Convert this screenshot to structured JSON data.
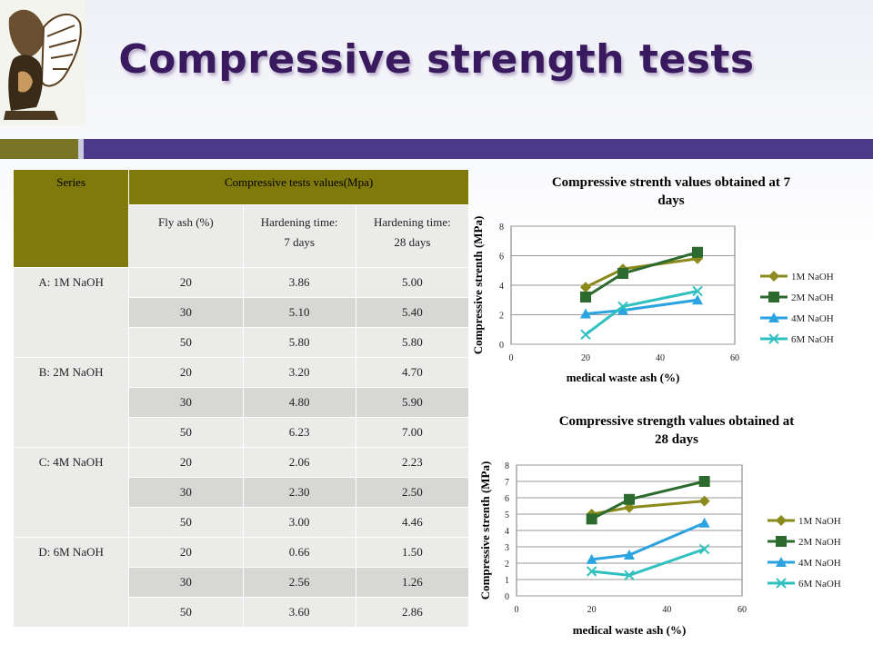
{
  "title": "Compressive strength tests",
  "table": {
    "header_series": "Series",
    "header_group": "Compressive tests values(Mpa)",
    "sub_headers": [
      "Fly ash (%)",
      "Hardening time: 7 days",
      "Hardening time: 28 days"
    ],
    "sub_header_lines": [
      [
        "Fly ash (%)"
      ],
      [
        "Hardening time:",
        "7 days"
      ],
      [
        "Hardening time:",
        "28 days"
      ]
    ],
    "groups": [
      {
        "series": "A: 1M NaOH",
        "rows": [
          [
            "20",
            "3.86",
            "5.00"
          ],
          [
            "30",
            "5.10",
            "5.40"
          ],
          [
            "50",
            "5.80",
            "5.80"
          ]
        ]
      },
      {
        "series": "B: 2M NaOH",
        "rows": [
          [
            "20",
            "3.20",
            "4.70"
          ],
          [
            "30",
            "4.80",
            "5.90"
          ],
          [
            "50",
            "6.23",
            "7.00"
          ]
        ]
      },
      {
        "series": "C: 4M NaOH",
        "rows": [
          [
            "20",
            "2.06",
            "2.23"
          ],
          [
            "30",
            "2.30",
            "2.50"
          ],
          [
            "50",
            "3.00",
            "4.46"
          ]
        ]
      },
      {
        "series": "D: 6M NaOH",
        "rows": [
          [
            "20",
            "0.66",
            "1.50"
          ],
          [
            "30",
            "2.56",
            "1.26"
          ],
          [
            "50",
            "3.60",
            "2.86"
          ]
        ]
      }
    ]
  },
  "chart_data": [
    {
      "type": "line",
      "title": "Compressive strenth values obtained at 7 days",
      "title_lines": [
        "Compressive strenth values obtained at 7",
        "days"
      ],
      "xlabel": "medical waste ash (%)",
      "ylabel": "Compressive strenth  (MPa)",
      "xlim": [
        0,
        60
      ],
      "ylim": [
        0,
        8
      ],
      "xticks": [
        "0",
        "20",
        "40",
        "60"
      ],
      "yticks": [
        "0",
        "2",
        "4",
        "6",
        "8"
      ],
      "x": [
        20,
        30,
        50
      ],
      "series": [
        {
          "name": "1M NaOH",
          "values": [
            3.86,
            5.1,
            5.8
          ],
          "color": "#8b8a1c",
          "marker": "diamond"
        },
        {
          "name": "2M NaOH",
          "values": [
            3.2,
            4.8,
            6.23
          ],
          "color": "#2d6a2d",
          "marker": "square"
        },
        {
          "name": "4M NaOH",
          "values": [
            2.06,
            2.3,
            3.0
          ],
          "color": "#2aa3e0",
          "marker": "triangle"
        },
        {
          "name": "6M NaOH",
          "values": [
            0.66,
            2.56,
            3.6
          ],
          "color": "#30c0c0",
          "marker": "x"
        }
      ],
      "grid": true,
      "legend": "right"
    },
    {
      "type": "line",
      "title": "Compressive strength values obtained at 28 days",
      "title_lines": [
        "Compressive strength values obtained at",
        "28 days"
      ],
      "xlabel": "medical waste ash (%)",
      "ylabel": "Compressive strenth (MPa)",
      "xlim": [
        0,
        60
      ],
      "ylim": [
        0,
        8
      ],
      "xticks": [
        "0",
        "20",
        "40",
        "60"
      ],
      "yticks": [
        "0",
        "1",
        "2",
        "3",
        "4",
        "5",
        "6",
        "7",
        "8"
      ],
      "x": [
        20,
        30,
        50
      ],
      "series": [
        {
          "name": "1M NaOH",
          "values": [
            5.0,
            5.4,
            5.8
          ],
          "color": "#8b8a1c",
          "marker": "diamond"
        },
        {
          "name": "2M NaOH",
          "values": [
            4.7,
            5.9,
            7.0
          ],
          "color": "#2d6a2d",
          "marker": "square"
        },
        {
          "name": "4M NaOH",
          "values": [
            2.23,
            2.5,
            4.46
          ],
          "color": "#2aa3e0",
          "marker": "triangle"
        },
        {
          "name": "6M NaOH",
          "values": [
            1.5,
            1.26,
            2.86
          ],
          "color": "#30c0c0",
          "marker": "x"
        }
      ],
      "grid": true,
      "legend": "right"
    }
  ]
}
